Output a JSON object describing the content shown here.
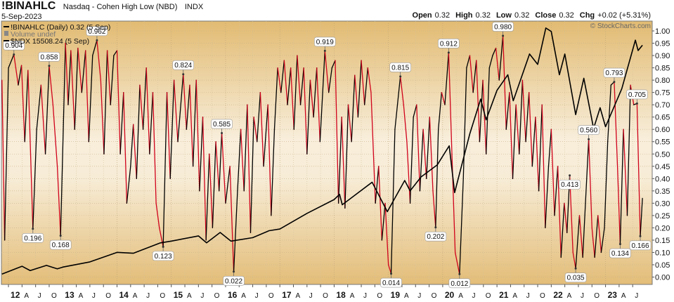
{
  "chart_data": {
    "type": "line",
    "title": "!BINAHLC",
    "subtitle": "Nasdaq - Cohen High Low (NBD)",
    "exchange": "INDX",
    "date": "5-Sep-2023",
    "quote": [
      {
        "label": "Open",
        "value": 0.32
      },
      {
        "label": "High",
        "value": 0.32
      },
      {
        "label": "Low",
        "value": 0.32
      },
      {
        "label": "Close",
        "value": 0.32
      },
      {
        "label": "Chg",
        "value": "+0.02 (+5.31%)"
      }
    ],
    "credit": "© StockCharts.com",
    "volume_label": "Volume undef",
    "xlim": [
      2011.87,
      2023.86
    ],
    "ylim": [
      -0.03,
      1.04
    ],
    "y2lim": [
      1700,
      16900
    ],
    "grid": true,
    "yticks": [
      {
        "value": 0,
        "label": "0.00"
      },
      0.05,
      {
        "value": 0.1,
        "label": "0.10"
      },
      0.15,
      {
        "value": 0.2,
        "label": "0.20"
      },
      0.25,
      {
        "value": 0.3,
        "label": "0.30"
      },
      0.35,
      {
        "value": 0.4,
        "label": "0.40"
      },
      0.45,
      {
        "value": 0.5,
        "label": "0.50"
      },
      0.55,
      {
        "value": 0.6,
        "label": "0.60"
      },
      0.65,
      {
        "value": 0.7,
        "label": "0.70"
      },
      0.75,
      {
        "value": 0.8,
        "label": "0.80"
      },
      0.85,
      {
        "value": 0.9,
        "label": "0.90"
      },
      0.95,
      {
        "value": 1,
        "label": "1.00"
      }
    ],
    "xticks": [
      {
        "value": 2012,
        "label": "12"
      },
      {
        "value": 2012.25,
        "label": "A"
      },
      {
        "value": 2012.5,
        "label": "J"
      },
      {
        "value": 2012.75,
        "label": "O"
      },
      {
        "value": 2013,
        "label": "13"
      },
      {
        "value": 2013.25,
        "label": "A"
      },
      {
        "value": 2013.5,
        "label": "J"
      },
      {
        "value": 2013.75,
        "label": "O"
      },
      {
        "value": 2014,
        "label": "14"
      },
      {
        "value": 2014.25,
        "label": "A"
      },
      {
        "value": 2014.5,
        "label": "J"
      },
      {
        "value": 2014.75,
        "label": "O"
      },
      {
        "value": 2015,
        "label": "15"
      },
      {
        "value": 2015.25,
        "label": "A"
      },
      {
        "value": 2015.5,
        "label": "J"
      },
      {
        "value": 2015.75,
        "label": "O"
      },
      {
        "value": 2016,
        "label": "16"
      },
      {
        "value": 2016.25,
        "label": "A"
      },
      {
        "value": 2016.5,
        "label": "J"
      },
      {
        "value": 2016.75,
        "label": "O"
      },
      {
        "value": 2017,
        "label": "17"
      },
      {
        "value": 2017.25,
        "label": "A"
      },
      {
        "value": 2017.5,
        "label": "J"
      },
      {
        "value": 2017.75,
        "label": "O"
      },
      {
        "value": 2018,
        "label": "18"
      },
      {
        "value": 2018.25,
        "label": "A"
      },
      {
        "value": 2018.5,
        "label": "J"
      },
      {
        "value": 2018.75,
        "label": "O"
      },
      {
        "value": 2019,
        "label": "19"
      },
      {
        "value": 2019.25,
        "label": "A"
      },
      {
        "value": 2019.5,
        "label": "J"
      },
      {
        "value": 2019.75,
        "label": "O"
      },
      {
        "value": 2020,
        "label": "20"
      },
      {
        "value": 2020.25,
        "label": "A"
      },
      {
        "value": 2020.5,
        "label": "J"
      },
      {
        "value": 2020.75,
        "label": "O"
      },
      {
        "value": 2021,
        "label": "21"
      },
      {
        "value": 2021.25,
        "label": "A"
      },
      {
        "value": 2021.5,
        "label": "J"
      },
      {
        "value": 2021.75,
        "label": "O"
      },
      {
        "value": 2022,
        "label": "22"
      },
      {
        "value": 2022.25,
        "label": "A"
      },
      {
        "value": 2022.5,
        "label": "J"
      },
      {
        "value": 2022.75,
        "label": "O"
      },
      {
        "value": 2023,
        "label": "23"
      },
      {
        "value": 2023.25,
        "label": "A"
      },
      {
        "value": 2023.5,
        "label": "J"
      }
    ],
    "series": [
      {
        "name": "!BINAHLC (Daily) 0.32 (5 Sep)",
        "color": "#000000",
        "down_color": "#d0021b",
        "x": [
          2011.88,
          2011.93,
          2012.0,
          2012.1,
          2012.18,
          2012.24,
          2012.3,
          2012.36,
          2012.45,
          2012.52,
          2012.6,
          2012.68,
          2012.75,
          2012.82,
          2012.9,
          2012.96,
          2013.05,
          2013.1,
          2013.15,
          2013.22,
          2013.28,
          2013.35,
          2013.42,
          2013.48,
          2013.55,
          2013.63,
          2013.7,
          2013.76,
          2013.82,
          2013.88,
          2013.94,
          2014.0,
          2014.06,
          2014.12,
          2014.18,
          2014.25,
          2014.3,
          2014.36,
          2014.42,
          2014.48,
          2014.54,
          2014.6,
          2014.66,
          2014.72,
          2014.78,
          2014.85,
          2014.92,
          2014.98,
          2015.05,
          2015.12,
          2015.22,
          2015.28,
          2015.34,
          2015.4,
          2015.46,
          2015.52,
          2015.58,
          2015.64,
          2015.7,
          2015.76,
          2015.82,
          2015.88,
          2015.93,
          2016.0,
          2016.08,
          2016.15,
          2016.22,
          2016.28,
          2016.34,
          2016.4,
          2016.46,
          2016.52,
          2016.58,
          2016.64,
          2016.7,
          2016.78,
          2016.84,
          2016.9,
          2016.96,
          2017.02,
          2017.08,
          2017.14,
          2017.2,
          2017.26,
          2017.32,
          2017.38,
          2017.44,
          2017.5,
          2017.56,
          2017.62,
          2017.68,
          2017.74,
          2017.83,
          2017.9,
          2017.96,
          2018.02,
          2018.08,
          2018.14,
          2018.2,
          2018.26,
          2018.32,
          2018.38,
          2018.44,
          2018.5,
          2018.56,
          2018.62,
          2018.68,
          2018.76,
          2018.82,
          2018.88,
          2018.94,
          2019.0,
          2019.05,
          2019.12,
          2019.22,
          2019.28,
          2019.34,
          2019.4,
          2019.46,
          2019.52,
          2019.58,
          2019.64,
          2019.7,
          2019.76,
          2019.82,
          2019.87,
          2019.92,
          2019.98,
          2020.04,
          2020.11,
          2020.17,
          2020.23,
          2020.31,
          2020.38,
          2020.44,
          2020.5,
          2020.56,
          2020.62,
          2020.68,
          2020.74,
          2020.8,
          2020.86,
          2020.92,
          2020.98,
          2021.04,
          2021.11,
          2021.17,
          2021.23,
          2021.29,
          2021.35,
          2021.41,
          2021.47,
          2021.53,
          2021.59,
          2021.65,
          2021.71,
          2021.77,
          2021.83,
          2021.89,
          2021.95,
          2022.0,
          2022.06,
          2022.12,
          2022.18,
          2022.24,
          2022.29,
          2022.34,
          2022.4,
          2022.45,
          2022.52,
          2022.58,
          2022.63,
          2022.69,
          2022.75,
          2022.8,
          2022.86,
          2022.92,
          2022.98,
          2023.04,
          2023.1,
          2023.16,
          2023.22,
          2023.27,
          2023.33,
          2023.4,
          2023.46,
          2023.52,
          2023.58,
          2023.64,
          2023.68
        ],
        "values": [
          0.8,
          0.15,
          0.85,
          0.904,
          0.78,
          0.86,
          0.55,
          0.84,
          0.196,
          0.6,
          0.78,
          0.5,
          0.858,
          0.7,
          0.45,
          0.168,
          0.95,
          0.7,
          0.92,
          0.6,
          0.93,
          0.75,
          0.92,
          0.55,
          0.9,
          0.962,
          0.8,
          0.5,
          0.92,
          0.7,
          0.9,
          0.92,
          0.5,
          0.75,
          0.3,
          0.45,
          0.62,
          0.4,
          0.78,
          0.6,
          0.85,
          0.5,
          0.75,
          0.3,
          0.2,
          0.123,
          0.75,
          0.4,
          0.8,
          0.55,
          0.824,
          0.6,
          0.78,
          0.45,
          0.8,
          0.35,
          0.65,
          0.15,
          0.5,
          0.2,
          0.55,
          0.35,
          0.585,
          0.3,
          0.45,
          0.022,
          0.35,
          0.6,
          0.35,
          0.7,
          0.18,
          0.65,
          0.55,
          0.75,
          0.45,
          0.7,
          0.25,
          0.6,
          0.85,
          0.75,
          0.88,
          0.7,
          0.85,
          0.6,
          0.9,
          0.7,
          0.85,
          0.5,
          0.8,
          0.65,
          0.85,
          0.55,
          0.919,
          0.75,
          0.85,
          0.88,
          0.3,
          0.65,
          0.28,
          0.7,
          0.55,
          0.82,
          0.65,
          0.88,
          0.7,
          0.85,
          0.75,
          0.3,
          0.45,
          0.15,
          0.3,
          0.05,
          0.014,
          0.6,
          0.815,
          0.7,
          0.55,
          0.3,
          0.65,
          0.7,
          0.35,
          0.6,
          0.4,
          0.65,
          0.35,
          0.202,
          0.6,
          0.75,
          0.7,
          0.912,
          0.5,
          0.1,
          0.012,
          0.4,
          0.85,
          0.9,
          0.75,
          0.88,
          0.55,
          0.8,
          0.5,
          0.85,
          0.9,
          0.93,
          0.8,
          0.98,
          0.6,
          0.75,
          0.4,
          0.7,
          0.5,
          0.8,
          0.55,
          0.75,
          0.45,
          0.65,
          0.35,
          0.7,
          0.2,
          0.45,
          0.6,
          0.25,
          0.45,
          0.08,
          0.3,
          0.18,
          0.413,
          0.1,
          0.035,
          0.25,
          0.08,
          0.3,
          0.56,
          0.2,
          0.08,
          0.25,
          0.1,
          0.2,
          0.55,
          0.78,
          0.793,
          0.45,
          0.134,
          0.6,
          0.25,
          0.78,
          0.7,
          0.705,
          0.166,
          0.32
        ]
      },
      {
        "name": "$NDX 15508.24 (5 Sep)",
        "color": "#000000",
        "axis": "y2",
        "x": [
          2011.88,
          2012.25,
          2012.4,
          2012.7,
          2012.9,
          2013.0,
          2013.5,
          2014.0,
          2014.3,
          2014.8,
          2015.0,
          2015.5,
          2015.65,
          2015.9,
          2016.1,
          2016.5,
          2016.8,
          2017.0,
          2017.5,
          2018.0,
          2018.1,
          2018.15,
          2018.7,
          2018.98,
          2019.3,
          2019.4,
          2019.6,
          2019.9,
          2020.12,
          2020.22,
          2020.5,
          2020.7,
          2020.8,
          2021.0,
          2021.2,
          2021.3,
          2021.6,
          2021.75,
          2021.9,
          2022.0,
          2022.15,
          2022.25,
          2022.45,
          2022.6,
          2022.78,
          2022.9,
          2023.0,
          2023.3,
          2023.55,
          2023.6,
          2023.68
        ],
        "values": [
          2300,
          2750,
          2500,
          2800,
          2600,
          2700,
          3000,
          3550,
          3500,
          4100,
          4200,
          4500,
          4100,
          4700,
          4200,
          4400,
          4800,
          4900,
          5800,
          6600,
          6900,
          6300,
          7600,
          5900,
          7700,
          7100,
          7900,
          8600,
          9700,
          7000,
          10400,
          12400,
          11200,
          12900,
          13800,
          12300,
          15000,
          14400,
          16500,
          16300,
          13800,
          15000,
          11500,
          13600,
          10700,
          11900,
          10800,
          13000,
          15800,
          15200,
          15508.24
        ]
      }
    ],
    "callouts": {
      "x": [
        2012.1,
        2012.45,
        2012.75,
        2012.96,
        2013.63,
        2014.85,
        2015.22,
        2015.93,
        2016.15,
        2017.83,
        2019.05,
        2019.22,
        2019.87,
        2020.11,
        2020.31,
        2021.11,
        2022.34,
        2022.45,
        2022.69,
        2023.16,
        2023.27,
        2023.58,
        2023.64
      ],
      "values": [
        0.904,
        0.196,
        0.858,
        0.168,
        0.962,
        0.123,
        0.824,
        0.585,
        0.022,
        0.919,
        0.014,
        0.815,
        0.202,
        0.912,
        0.012,
        0.98,
        0.413,
        0.035,
        0.56,
        0.793,
        0.134,
        0.705,
        0.166
      ],
      "value_labels": [
        "0.904",
        "0.196",
        "0.858",
        "0.168",
        "0.962",
        "0.123",
        "0.824",
        "0.585",
        "0.022",
        "0.919",
        "0.014",
        "0.815",
        "0.202",
        "0.912",
        "0.012",
        "0.980",
        "0.413",
        "0.035",
        "0.560",
        "0.793",
        "0.134",
        "0.705",
        "0.166"
      ]
    }
  }
}
